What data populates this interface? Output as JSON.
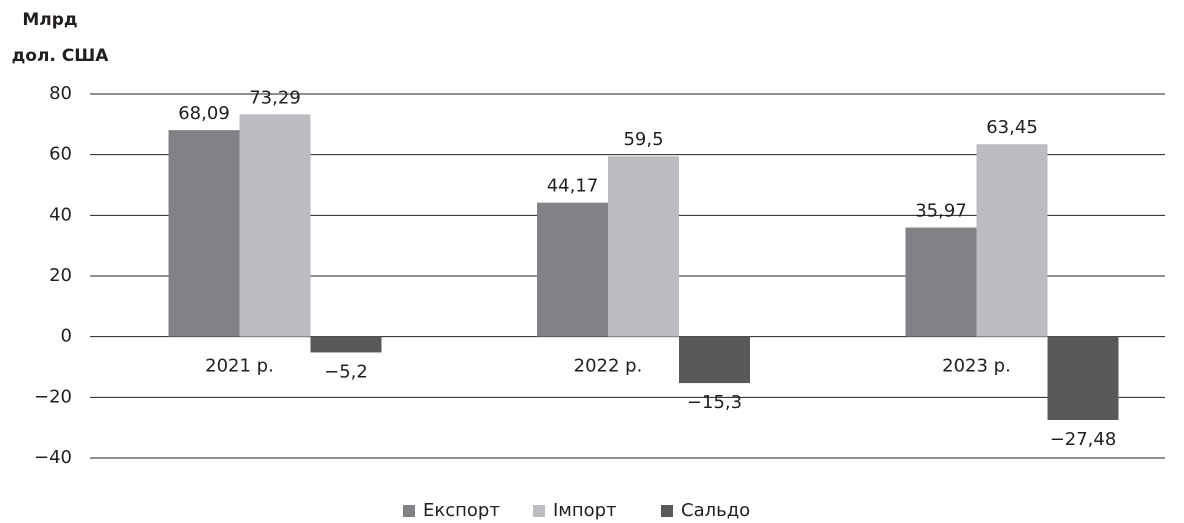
{
  "chart_data": {
    "type": "bar",
    "ylabel": [
      "Млрд",
      "дол. США"
    ],
    "categories": [
      "2021 р.",
      "2022 р.",
      "2023 р."
    ],
    "series": [
      {
        "name": "Експорт",
        "color": "#808285",
        "values": [
          68.09,
          44.17,
          35.97
        ],
        "value_labels": [
          "68,09",
          "44,17",
          "35,97"
        ]
      },
      {
        "name": "Імпорт",
        "color": "#bcbdc0",
        "values": [
          73.29,
          59.5,
          63.45
        ],
        "value_labels": [
          "73,29",
          "59,5",
          "63,45"
        ]
      },
      {
        "name": "Сальдо",
        "color": "#58595b",
        "values": [
          -5.2,
          -15.3,
          -27.48
        ],
        "value_labels": [
          "−5,2",
          "−15,3",
          "−27,48"
        ]
      }
    ],
    "ylim": [
      -40,
      80
    ],
    "yticks": [
      {
        "value": -40,
        "label": "−40"
      },
      {
        "value": -20,
        "label": "−20"
      },
      0,
      20,
      40,
      60,
      80
    ],
    "grid": true,
    "legend": "bottom"
  }
}
